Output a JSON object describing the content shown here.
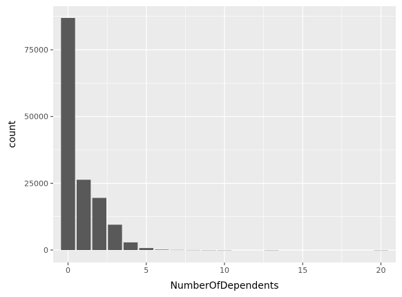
{
  "chart_data": {
    "type": "bar",
    "title": "",
    "xlabel": "NumberOfDependents",
    "ylabel": "count",
    "x": [
      0,
      1,
      2,
      3,
      4,
      5,
      6,
      7,
      8,
      9,
      10,
      13,
      20
    ],
    "values": [
      86902,
      26316,
      19522,
      9483,
      2862,
      746,
      158,
      51,
      24,
      5,
      1,
      1,
      1
    ],
    "xlim": [
      -0.95,
      20.95
    ],
    "ylim": [
      0,
      90000
    ],
    "x_ticks": [
      0,
      5,
      10,
      15,
      20
    ],
    "y_ticks": [
      0,
      25000,
      50000,
      75000
    ],
    "grid": true,
    "colors": {
      "bar": "#595959",
      "panel": "#ebebeb",
      "grid": "#ffffff"
    }
  }
}
